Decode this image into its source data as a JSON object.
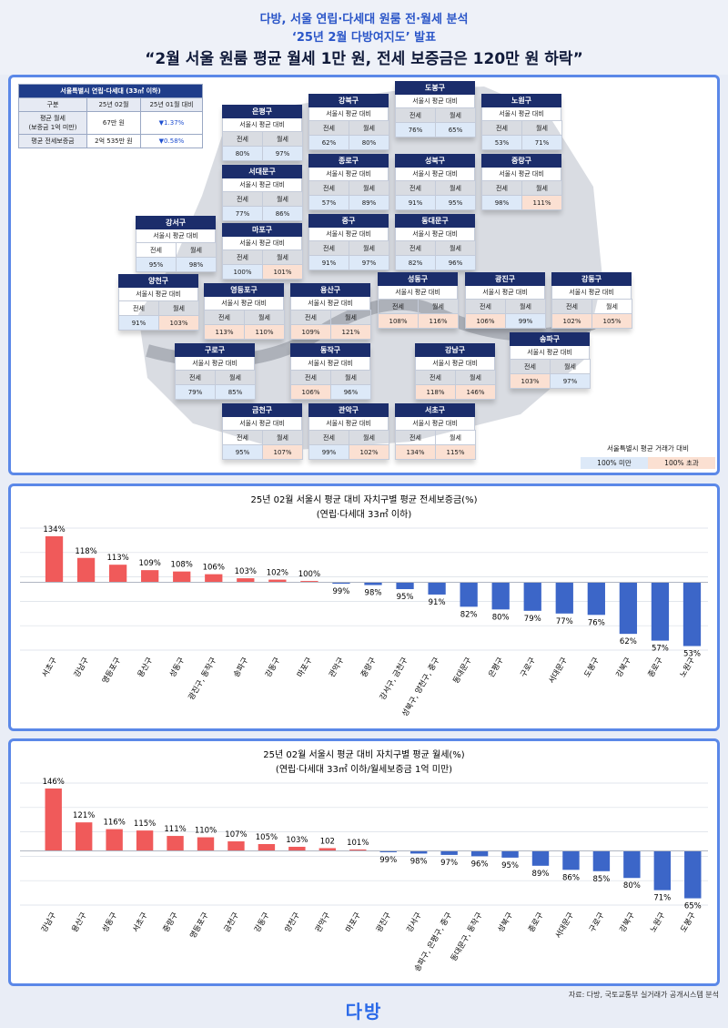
{
  "header": {
    "line1": "다방, 서울 연립·다세대 원룸 전·월세 분석",
    "line2": "‘25년 2월 다방여지도’ 발표",
    "line3": "“2월 서울 원룸 평균 월세 1만 원, 전세 보증금은 120만 원 하락”"
  },
  "summary": {
    "caption": "서울특별시 연립·다세대 (33㎡ 이하)",
    "headers": [
      "구분",
      "25년 02월",
      "25년 01월 대비"
    ],
    "rows": [
      {
        "label": "평균 월세\n(보증금 1억 미만)",
        "value": "67만 원",
        "change": "▼1.37%"
      },
      {
        "label": "평균 전세보증금",
        "value": "2억 535만 원",
        "change": "▼0.58%"
      }
    ]
  },
  "map": {
    "subtitle": "서울시 평균 대비",
    "col1": "전세",
    "col2": "월세",
    "districts": [
      {
        "name": "은평구",
        "jeonse": "80%",
        "wolse": "97%"
      },
      {
        "name": "강북구",
        "jeonse": "62%",
        "wolse": "80%"
      },
      {
        "name": "도봉구",
        "jeonse": "76%",
        "wolse": "65%"
      },
      {
        "name": "노원구",
        "jeonse": "53%",
        "wolse": "71%"
      },
      {
        "name": "서대문구",
        "jeonse": "77%",
        "wolse": "86%"
      },
      {
        "name": "종로구",
        "jeonse": "57%",
        "wolse": "89%"
      },
      {
        "name": "성북구",
        "jeonse": "91%",
        "wolse": "95%"
      },
      {
        "name": "중랑구",
        "jeonse": "98%",
        "wolse": "111%"
      },
      {
        "name": "강서구",
        "jeonse": "95%",
        "wolse": "98%"
      },
      {
        "name": "마포구",
        "jeonse": "100%",
        "wolse": "101%"
      },
      {
        "name": "중구",
        "jeonse": "91%",
        "wolse": "97%"
      },
      {
        "name": "동대문구",
        "jeonse": "82%",
        "wolse": "96%"
      },
      {
        "name": "양천구",
        "jeonse": "91%",
        "wolse": "103%"
      },
      {
        "name": "영등포구",
        "jeonse": "113%",
        "wolse": "110%"
      },
      {
        "name": "용산구",
        "jeonse": "109%",
        "wolse": "121%"
      },
      {
        "name": "성동구",
        "jeonse": "108%",
        "wolse": "116%"
      },
      {
        "name": "광진구",
        "jeonse": "106%",
        "wolse": "99%"
      },
      {
        "name": "강동구",
        "jeonse": "102%",
        "wolse": "105%"
      },
      {
        "name": "구로구",
        "jeonse": "79%",
        "wolse": "85%"
      },
      {
        "name": "동작구",
        "jeonse": "106%",
        "wolse": "96%"
      },
      {
        "name": "강남구",
        "jeonse": "118%",
        "wolse": "146%"
      },
      {
        "name": "송파구",
        "jeonse": "103%",
        "wolse": "97%"
      },
      {
        "name": "금천구",
        "jeonse": "95%",
        "wolse": "107%"
      },
      {
        "name": "관악구",
        "jeonse": "99%",
        "wolse": "102%"
      },
      {
        "name": "서초구",
        "jeonse": "134%",
        "wolse": "115%"
      }
    ],
    "legend": {
      "title": "서울특별시 평균 거래가 대비",
      "low": "100% 미만",
      "high": "100% 초과",
      "low_color": "#dde9f8",
      "high_color": "#fbe0d2"
    }
  },
  "chart_data": [
    {
      "type": "bar",
      "title": "25년 02월 서울시 평균 대비 자치구별 평균 전세보증금(%)",
      "subtitle": "(연립·다세대 33㎡ 이하)",
      "categories": [
        "서초구",
        "강남구",
        "영등포구",
        "용산구",
        "성동구",
        "광진구, 동작구",
        "송파구",
        "강동구",
        "마포구",
        "관악구",
        "중랑구",
        "강서구, 금천구",
        "성북구, 양천구, 중구",
        "동대문구",
        "은평구",
        "구로구",
        "서대문구",
        "도봉구",
        "강북구",
        "종로구",
        "노원구"
      ],
      "values": [
        134,
        118,
        113,
        109,
        108,
        106,
        103,
        102,
        100,
        99,
        98,
        95,
        91,
        82,
        80,
        79,
        77,
        76,
        62,
        57,
        53
      ],
      "labels": [
        "134%",
        "118%",
        "113%",
        "109%",
        "108%",
        "106%",
        "103%",
        "102%",
        "100%",
        "99%",
        "98%",
        "95%",
        "91%",
        "82%",
        "80%",
        "79%",
        "77%",
        "76%",
        "62%",
        "57%",
        "53%"
      ],
      "baseline": 100,
      "ylim": [
        50,
        140
      ],
      "colors": {
        "above": "#f05a5a",
        "below": "#3c66c8"
      }
    },
    {
      "type": "bar",
      "title": "25년 02월 서울시 평균 대비 자치구별 평균 월세(%)",
      "subtitle": "(연립·다세대 33㎡ 이하/월세보증금  1억 미만)",
      "categories": [
        "강남구",
        "용산구",
        "성동구",
        "서초구",
        "중랑구",
        "영등포구",
        "금천구",
        "강동구",
        "양천구",
        "관악구",
        "마포구",
        "광진구",
        "강서구",
        "송파구, 은평구, 중구",
        "동대문구, 동작구",
        "성북구",
        "종로구",
        "서대문구",
        "구로구",
        "강북구",
        "노원구",
        "도봉구"
      ],
      "values": [
        146,
        121,
        116,
        115,
        111,
        110,
        107,
        105,
        103,
        102,
        101,
        99,
        98,
        97,
        96,
        95,
        89,
        86,
        85,
        80,
        71,
        65
      ],
      "labels": [
        "146%",
        "121%",
        "116%",
        "115%",
        "111%",
        "110%",
        "107%",
        "105%",
        "103%",
        "102",
        "101%",
        "99%",
        "98%",
        "97%",
        "96%",
        "95%",
        "89%",
        "86%",
        "85%",
        "80%",
        "71%",
        "65%"
      ],
      "baseline": 100,
      "ylim": [
        60,
        150
      ],
      "colors": {
        "above": "#f05a5a",
        "below": "#3c66c8"
      }
    }
  ],
  "footer": {
    "source": "자료: 다방, 국토교통부 실거래가 공개시스템 분석",
    "logo": "다방"
  }
}
